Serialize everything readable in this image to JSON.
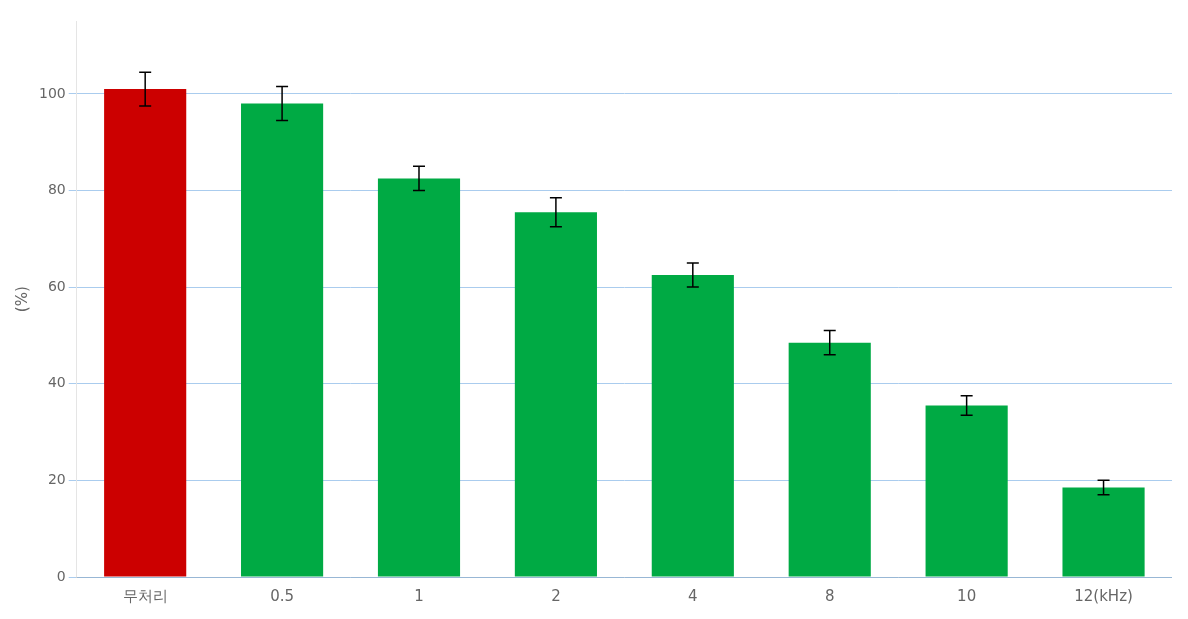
{
  "chart_data": {
    "type": "bar",
    "categories": [
      "무처리",
      "0.5",
      "1",
      "2",
      "4",
      "8",
      "10",
      "12(kHz)"
    ],
    "values": [
      101.0,
      98.0,
      82.5,
      75.5,
      62.5,
      48.5,
      35.5,
      18.5
    ],
    "errors": [
      3.5,
      3.5,
      2.5,
      3.0,
      2.5,
      2.5,
      2.0,
      1.5
    ],
    "colors": [
      "#cc0000",
      "#00aa44",
      "#00aa44",
      "#00aa44",
      "#00aa44",
      "#00aa44",
      "#00aa44",
      "#00aa44"
    ],
    "ylabel": "(%)",
    "ylim": [
      0,
      115
    ],
    "yticks": [
      0,
      20,
      40,
      60,
      80,
      100
    ],
    "grid": true
  }
}
